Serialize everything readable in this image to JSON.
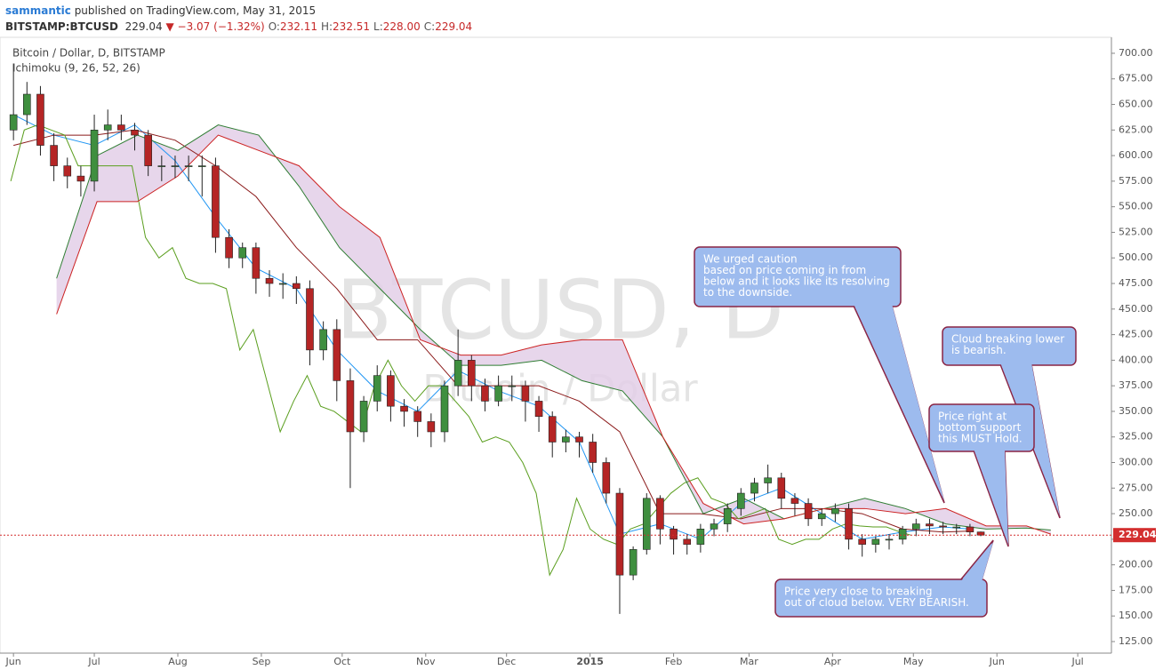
{
  "header": {
    "author": "sammantic",
    "published": "published on TradingView.com, May 31, 2015",
    "symbol": "BITSTAMP:BTCUSD",
    "last": "229.04",
    "change": "−3.07 (−1.32%)",
    "ohlc": [
      {
        "label": "O:",
        "value": "232.11"
      },
      {
        "label": "H:",
        "value": "232.51"
      },
      {
        "label": "L:",
        "value": "228.00"
      },
      {
        "label": "C:",
        "value": "229.04"
      }
    ]
  },
  "chart_data": {
    "type": "candlestick",
    "title": "Bitcoin / Dollar, D, BITSTAMP",
    "subtitle": "Ichimoku (9, 26, 52, 26)",
    "watermark": [
      "BTCUSD, D",
      "Bitcoin / Dollar"
    ],
    "x": [
      0,
      5,
      10,
      15,
      20,
      25,
      30,
      35,
      40,
      45,
      50,
      55,
      60,
      65,
      70,
      75,
      80,
      85,
      90,
      95,
      100,
      105,
      110,
      115,
      120,
      125,
      130,
      135,
      140,
      145,
      150,
      155,
      160,
      165,
      170,
      175,
      180,
      185,
      190,
      195,
      200,
      205,
      210,
      215,
      220,
      225,
      230,
      235,
      240,
      245,
      250,
      255,
      260,
      265,
      270,
      275,
      280,
      285,
      290,
      295,
      300,
      305,
      310,
      315,
      320,
      325,
      330,
      335,
      340,
      345,
      350,
      355,
      359
    ],
    "open": [
      625,
      640,
      660,
      610,
      590,
      580,
      575,
      625,
      630,
      625,
      620,
      590,
      590,
      590,
      590,
      590,
      520,
      500,
      510,
      480,
      475,
      475,
      470,
      410,
      430,
      380,
      330,
      360,
      385,
      355,
      350,
      340,
      330,
      375,
      400,
      375,
      360,
      375,
      375,
      360,
      345,
      320,
      325,
      320,
      300,
      270,
      190,
      215,
      265,
      235,
      225,
      220,
      235,
      240,
      255,
      270,
      280,
      285,
      265,
      260,
      245,
      250,
      255,
      225,
      220,
      225,
      225,
      235,
      240,
      238,
      237,
      237,
      232.11
    ],
    "high": [
      690,
      672,
      668,
      622,
      598,
      590,
      640,
      645,
      640,
      632,
      625,
      600,
      600,
      600,
      600,
      598,
      528,
      515,
      515,
      488,
      485,
      482,
      478,
      438,
      440,
      392,
      365,
      395,
      390,
      362,
      355,
      348,
      380,
      430,
      405,
      382,
      385,
      385,
      380,
      365,
      350,
      332,
      330,
      328,
      305,
      275,
      218,
      270,
      268,
      238,
      230,
      240,
      245,
      260,
      275,
      285,
      298,
      290,
      270,
      265,
      255,
      260,
      260,
      230,
      228,
      230,
      238,
      245,
      245,
      242,
      240,
      240,
      232.51
    ],
    "low": [
      615,
      630,
      600,
      575,
      568,
      560,
      565,
      615,
      615,
      605,
      580,
      575,
      578,
      575,
      560,
      505,
      490,
      490,
      465,
      462,
      460,
      455,
      395,
      400,
      360,
      275,
      320,
      350,
      340,
      335,
      325,
      315,
      320,
      365,
      360,
      350,
      355,
      360,
      340,
      330,
      305,
      310,
      305,
      290,
      260,
      152,
      185,
      210,
      220,
      210,
      210,
      212,
      228,
      232,
      248,
      262,
      270,
      255,
      248,
      238,
      238,
      242,
      215,
      208,
      212,
      215,
      220,
      228,
      230,
      230,
      230,
      228,
      228
    ],
    "close": [
      640,
      660,
      610,
      590,
      580,
      575,
      625,
      630,
      625,
      620,
      590,
      590,
      590,
      590,
      590,
      520,
      500,
      510,
      480,
      475,
      475,
      470,
      410,
      430,
      380,
      330,
      360,
      385,
      355,
      350,
      340,
      330,
      375,
      400,
      375,
      360,
      375,
      375,
      360,
      345,
      320,
      325,
      320,
      300,
      270,
      190,
      215,
      265,
      235,
      225,
      220,
      235,
      240,
      255,
      270,
      280,
      285,
      265,
      260,
      245,
      250,
      255,
      225,
      220,
      225,
      225,
      235,
      240,
      238,
      237,
      237,
      232.11,
      229.04
    ],
    "up_color": "#3f8f3f",
    "down_color": "#b52525",
    "cloud_color": "#e3cfe8",
    "last_price_color": "#d32f2f",
    "series": [
      {
        "color": "#2196f3",
        "x": [
          0,
          15,
          30,
          45,
          60,
          75,
          90,
          105,
          120,
          135,
          150,
          165,
          180,
          195,
          210,
          225,
          240,
          255,
          270,
          285,
          300,
          315,
          330,
          345,
          355
        ],
        "values": [
          640,
          620,
          610,
          630,
          595,
          540,
          490,
          470,
          410,
          370,
          350,
          390,
          370,
          355,
          320,
          230,
          240,
          225,
          260,
          275,
          250,
          225,
          232,
          237,
          235
        ]
      },
      {
        "color": "#8b1a1a",
        "x": [
          0,
          15,
          30,
          45,
          60,
          75,
          90,
          105,
          120,
          135,
          150,
          165,
          180,
          195,
          210,
          225,
          240,
          255,
          270,
          285,
          300,
          315,
          330,
          345,
          355
        ],
        "values": [
          610,
          620,
          620,
          625,
          615,
          590,
          560,
          510,
          470,
          420,
          420,
          375,
          375,
          375,
          360,
          330,
          250,
          250,
          245,
          255,
          255,
          250,
          235,
          232,
          233
        ]
      },
      {
        "color": "#5a9e1e",
        "x": [
          -1,
          4,
          9,
          14,
          19,
          24,
          29,
          34,
          39,
          44,
          49,
          54,
          59,
          64,
          69,
          74,
          79,
          84,
          89,
          94,
          99,
          104,
          109,
          114,
          119,
          124,
          129,
          134,
          139,
          144,
          149,
          154,
          159,
          164,
          169,
          174,
          179,
          184,
          189,
          194,
          199,
          204,
          209,
          214,
          219,
          224,
          229,
          234,
          239,
          244,
          249,
          254,
          259,
          264,
          269,
          274,
          279,
          284,
          289,
          294,
          299,
          304,
          309,
          314,
          319,
          324,
          329,
          333
        ],
        "values": [
          575,
          625,
          630,
          625,
          620,
          590,
          590,
          590,
          590,
          590,
          520,
          500,
          510,
          480,
          475,
          475,
          470,
          410,
          430,
          380,
          330,
          360,
          385,
          355,
          350,
          340,
          330,
          375,
          400,
          375,
          360,
          375,
          375,
          360,
          345,
          320,
          325,
          320,
          300,
          270,
          190,
          215,
          265,
          235,
          225,
          220,
          235,
          240,
          255,
          270,
          280,
          285,
          265,
          260,
          245,
          250,
          255,
          225,
          220,
          225,
          225,
          235,
          240,
          238,
          237,
          237,
          232.11,
          229.04
        ]
      },
      {
        "color": "#2e7d32",
        "x": [
          16,
          31,
          46,
          61,
          76,
          91,
          106,
          121,
          136,
          151,
          166,
          181,
          196,
          211,
          226,
          241,
          256,
          271,
          286,
          301,
          316,
          331,
          346,
          361,
          376,
          385
        ],
        "values": [
          480,
          600,
          620,
          605,
          630,
          620,
          570,
          510,
          470,
          430,
          395,
          395,
          400,
          380,
          370,
          325,
          250,
          265,
          245,
          255,
          265,
          255,
          240,
          235,
          236,
          234
        ]
      },
      {
        "color": "#cc2222",
        "x": [
          16,
          31,
          46,
          61,
          76,
          91,
          106,
          121,
          136,
          151,
          166,
          181,
          196,
          211,
          226,
          241,
          256,
          271,
          286,
          301,
          316,
          331,
          346,
          361,
          376,
          385
        ],
        "values": [
          445,
          555,
          555,
          580,
          620,
          605,
          590,
          550,
          520,
          420,
          405,
          405,
          415,
          420,
          420,
          325,
          260,
          240,
          245,
          255,
          255,
          250,
          255,
          238,
          238,
          230
        ]
      }
    ],
    "xlim": [
      -5,
      407.5
    ],
    "xticks": [
      {
        "value": 0,
        "label": "Jun"
      },
      {
        "value": 30,
        "label": "Jul"
      },
      {
        "value": 61,
        "label": "Aug"
      },
      {
        "value": 92,
        "label": "Sep"
      },
      {
        "value": 122,
        "label": "Oct"
      },
      {
        "value": 153,
        "label": "Nov"
      },
      {
        "value": 183,
        "label": "Dec"
      },
      {
        "value": 214,
        "label": "2015"
      },
      {
        "value": 245,
        "label": "Feb"
      },
      {
        "value": 273,
        "label": "Mar"
      },
      {
        "value": 304,
        "label": "Apr"
      },
      {
        "value": 334,
        "label": "May"
      },
      {
        "value": 365,
        "label": "Jun"
      },
      {
        "value": 395,
        "label": "Jul"
      }
    ],
    "ylim": [
      113.7,
      715.6
    ],
    "yticks": [
      {
        "value": 125,
        "label": "125.00"
      },
      {
        "value": 150,
        "label": "150.00"
      },
      {
        "value": 175,
        "label": "175.00"
      },
      {
        "value": 200,
        "label": "200.00"
      },
      {
        "value": 225,
        "label": "225.00"
      },
      {
        "value": 250,
        "label": "250.00"
      },
      {
        "value": 275,
        "label": "275.00"
      },
      {
        "value": 300,
        "label": "300.00"
      },
      {
        "value": 325,
        "label": "325.00"
      },
      {
        "value": 350,
        "label": "350.00"
      },
      {
        "value": 375,
        "label": "375.00"
      },
      {
        "value": 400,
        "label": "400.00"
      },
      {
        "value": 425,
        "label": "425.00"
      },
      {
        "value": 450,
        "label": "450.00"
      },
      {
        "value": 475,
        "label": "475.00"
      },
      {
        "value": 500,
        "label": "500.00"
      },
      {
        "value": 525,
        "label": "525.00"
      },
      {
        "value": 550,
        "label": "550.00"
      },
      {
        "value": 575,
        "label": "575.00"
      },
      {
        "value": 600,
        "label": "600.00"
      },
      {
        "value": 625,
        "label": "625.00"
      },
      {
        "value": 650,
        "label": "650.00"
      },
      {
        "value": 675,
        "label": "675.00"
      },
      {
        "value": 700,
        "label": "700.00"
      }
    ],
    "annotations": [
      {
        "lines": [
          "We urged caution",
          "based on price coming in from",
          "below and it looks like its resolving",
          "to the downside."
        ]
      },
      {
        "lines": [
          "Cloud breaking lower",
          "is bearish."
        ]
      },
      {
        "lines": [
          "Price right at",
          "bottom support",
          "this MUST Hold."
        ]
      },
      {
        "lines": [
          "Price very close to breaking",
          "out of cloud below. VERY BEARISH."
        ]
      }
    ]
  }
}
